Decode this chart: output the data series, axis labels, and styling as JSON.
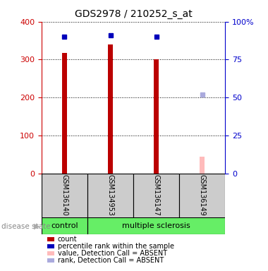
{
  "title": "GDS2978 / 210252_s_at",
  "samples": [
    "GSM136140",
    "GSM134953",
    "GSM136147",
    "GSM136149"
  ],
  "bar_values": [
    318,
    340,
    300,
    45
  ],
  "bar_colors": [
    "#bb0000",
    "#bb0000",
    "#bb0000",
    "#ffbbbb"
  ],
  "percentile_values": [
    90,
    91,
    90,
    52
  ],
  "percentile_colors": [
    "#0000bb",
    "#0000bb",
    "#0000bb",
    "#aaaadd"
  ],
  "disease_groups": [
    {
      "label": "control",
      "start": 0,
      "end": 1
    },
    {
      "label": "multiple sclerosis",
      "start": 1,
      "end": 4
    }
  ],
  "ylim_left": [
    0,
    400
  ],
  "ylim_right": [
    0,
    100
  ],
  "yticks_left": [
    0,
    100,
    200,
    300,
    400
  ],
  "yticks_right": [
    0,
    25,
    50,
    75,
    100
  ],
  "ytick_labels_right": [
    "0",
    "25",
    "50",
    "75",
    "100%"
  ],
  "left_axis_color": "#cc0000",
  "right_axis_color": "#0000cc",
  "legend_items": [
    {
      "label": "count",
      "color": "#bb0000"
    },
    {
      "label": "percentile rank within the sample",
      "color": "#0000bb"
    },
    {
      "label": "value, Detection Call = ABSENT",
      "color": "#ffbbbb"
    },
    {
      "label": "rank, Detection Call = ABSENT",
      "color": "#aaaadd"
    }
  ]
}
